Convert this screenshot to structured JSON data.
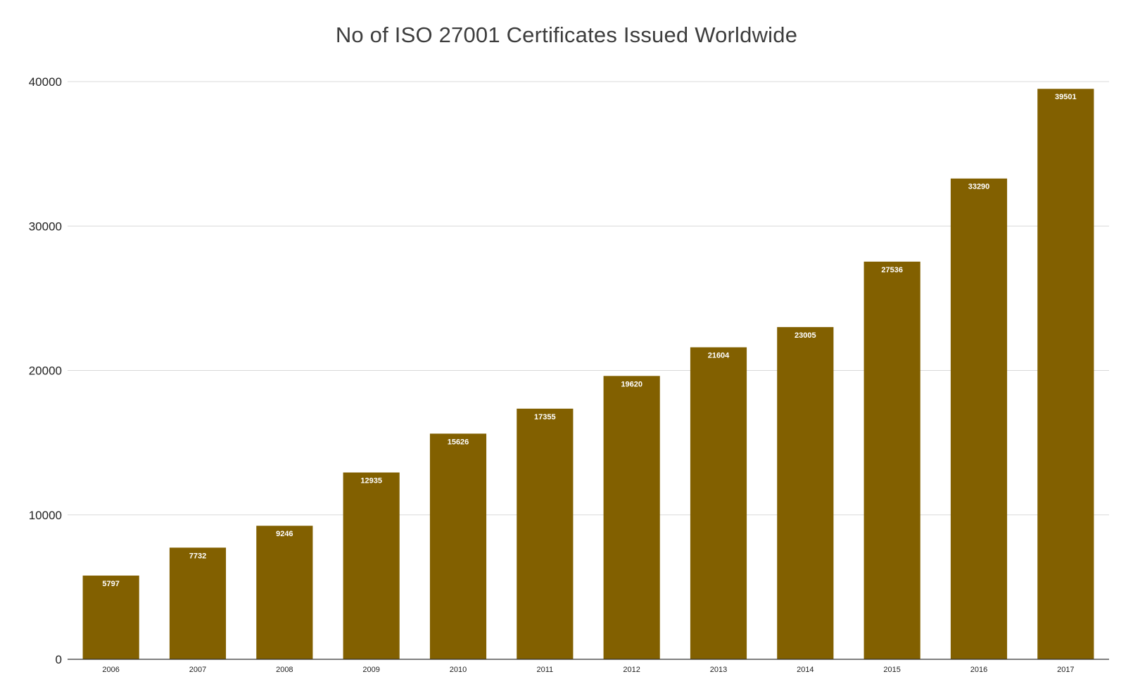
{
  "chart_data": {
    "type": "bar",
    "title": "No of ISO 27001 Certificates Issued Worldwide",
    "xlabel": "",
    "ylabel": "",
    "categories": [
      "2006",
      "2007",
      "2008",
      "2009",
      "2010",
      "2011",
      "2012",
      "2013",
      "2014",
      "2015",
      "2016",
      "2017"
    ],
    "values": [
      5797,
      7732,
      9246,
      12935,
      15626,
      17355,
      19620,
      21604,
      23005,
      27536,
      33290,
      39501
    ],
    "ylim": [
      0,
      40000
    ],
    "yticks": [
      0,
      10000,
      20000,
      30000,
      40000
    ],
    "grid": true,
    "legend": "none",
    "data_labels": true,
    "colors": {
      "bar": "#826000",
      "grid": "#d9d9d9",
      "axis": "#333333",
      "title": "#3d3d3d",
      "label_text": "#ffffff"
    }
  }
}
